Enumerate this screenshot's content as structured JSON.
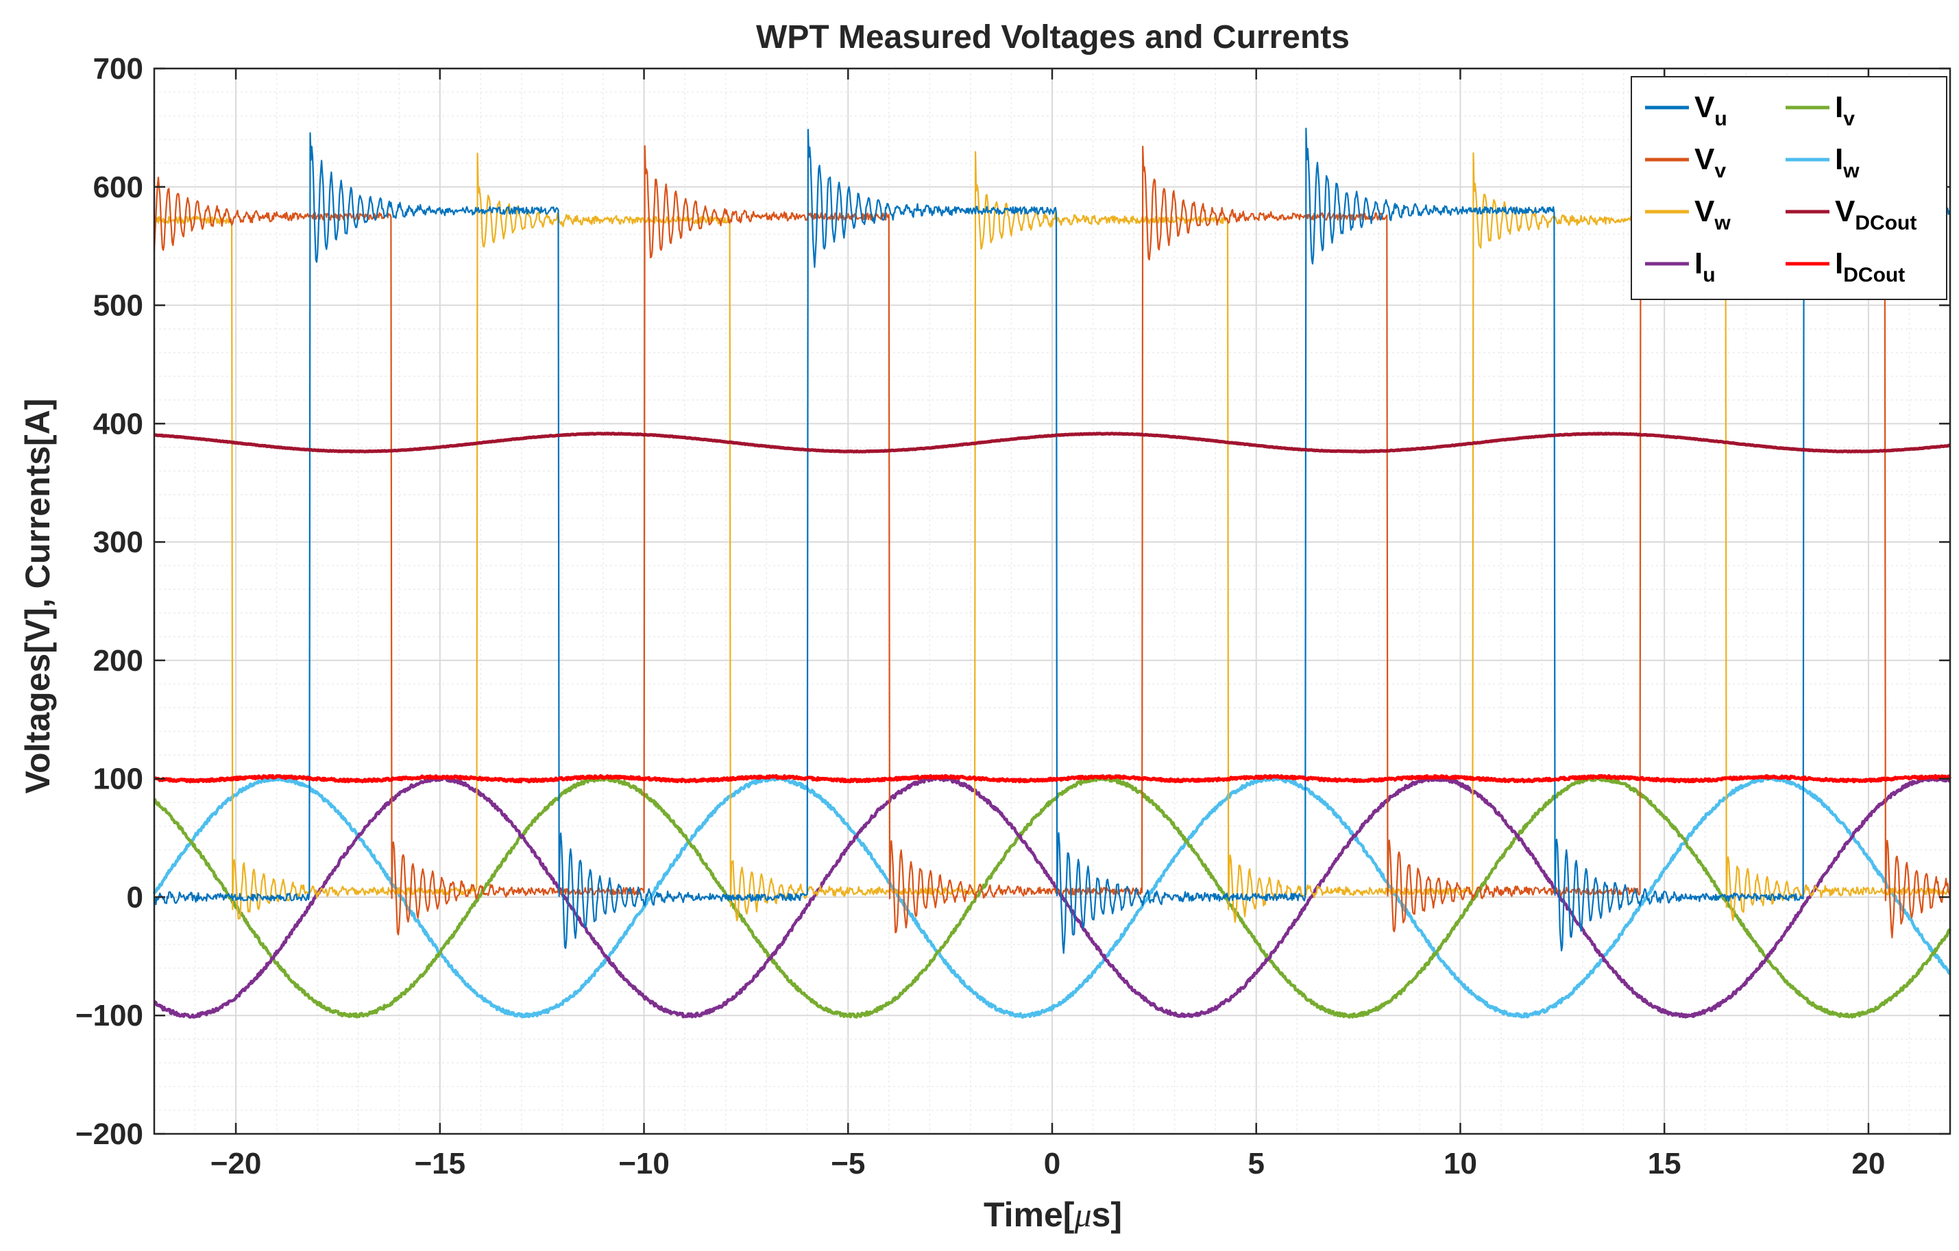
{
  "chart_data": {
    "type": "line",
    "title": "WPT Measured Voltages and Currents",
    "xlabel_main": "Time[",
    "xlabel_mu": "μ",
    "xlabel_tail": "s]",
    "ylabel": "Voltages[V], Currents[A]",
    "xlim": [
      -22,
      22
    ],
    "ylim": [
      -200,
      700
    ],
    "xticks": [
      -20,
      -15,
      -10,
      -5,
      0,
      5,
      10,
      15,
      20
    ],
    "xtick_labels": [
      "−20",
      "−15",
      "−10",
      "−5",
      "0",
      "5",
      "10",
      "15",
      "20"
    ],
    "yticks": [
      -200,
      -100,
      0,
      100,
      200,
      300,
      400,
      500,
      600,
      700
    ],
    "ytick_labels": [
      "−200",
      "−100",
      "0",
      "100",
      "200",
      "300",
      "400",
      "500",
      "600",
      "700"
    ],
    "grid": true,
    "minor_grid": true,
    "legend_position": "top-right",
    "period_us": 12.2,
    "sample_step_us": 0.02,
    "series": [
      {
        "name": "Vu",
        "base": "V",
        "sub": "u",
        "kind": "square",
        "color": "#0072BD",
        "high": 580,
        "low": 0,
        "rise_us": -18.2,
        "fall_us": -12.1,
        "ringing_amplitude": 55
      },
      {
        "name": "Vv",
        "base": "V",
        "sub": "v",
        "kind": "square",
        "color": "#D95319",
        "high": 575,
        "low": 5,
        "rise_us": -22.2,
        "fall_us": -16.2,
        "ringing_amplitude": 45
      },
      {
        "name": "Vw",
        "base": "V",
        "sub": "w",
        "kind": "square",
        "color": "#EDB120",
        "high": 572,
        "low": 5,
        "rise_us": -14.1,
        "fall_us": -20.1,
        "ringing_amplitude": 30
      },
      {
        "name": "Iu",
        "base": "I",
        "sub": "u",
        "kind": "sine",
        "color": "#7E2F8E",
        "amplitude": 100,
        "peak_us": -15.0
      },
      {
        "name": "Iv",
        "base": "I",
        "sub": "v",
        "kind": "sine",
        "color": "#77AC30",
        "amplitude": 100,
        "peak_us": -11.0
      },
      {
        "name": "Iw",
        "base": "I",
        "sub": "w",
        "kind": "sine",
        "color": "#4DBEEE",
        "amplitude": 100,
        "peak_us": -19.0
      },
      {
        "name": "VDCout",
        "base": "V",
        "sub": "DCout",
        "kind": "dc",
        "color": "#A2142F",
        "mean": 384,
        "ripple": 7.5,
        "ripple_peak_us": -10.9,
        "ripple_period_us": 12.2
      },
      {
        "name": "IDCout",
        "base": "I",
        "sub": "DCout",
        "kind": "dc",
        "color": "#FF0000",
        "mean": 100,
        "ripple": 1.5,
        "ripple_peak_us": -15.0,
        "ripple_period_us": 4.07
      }
    ]
  }
}
